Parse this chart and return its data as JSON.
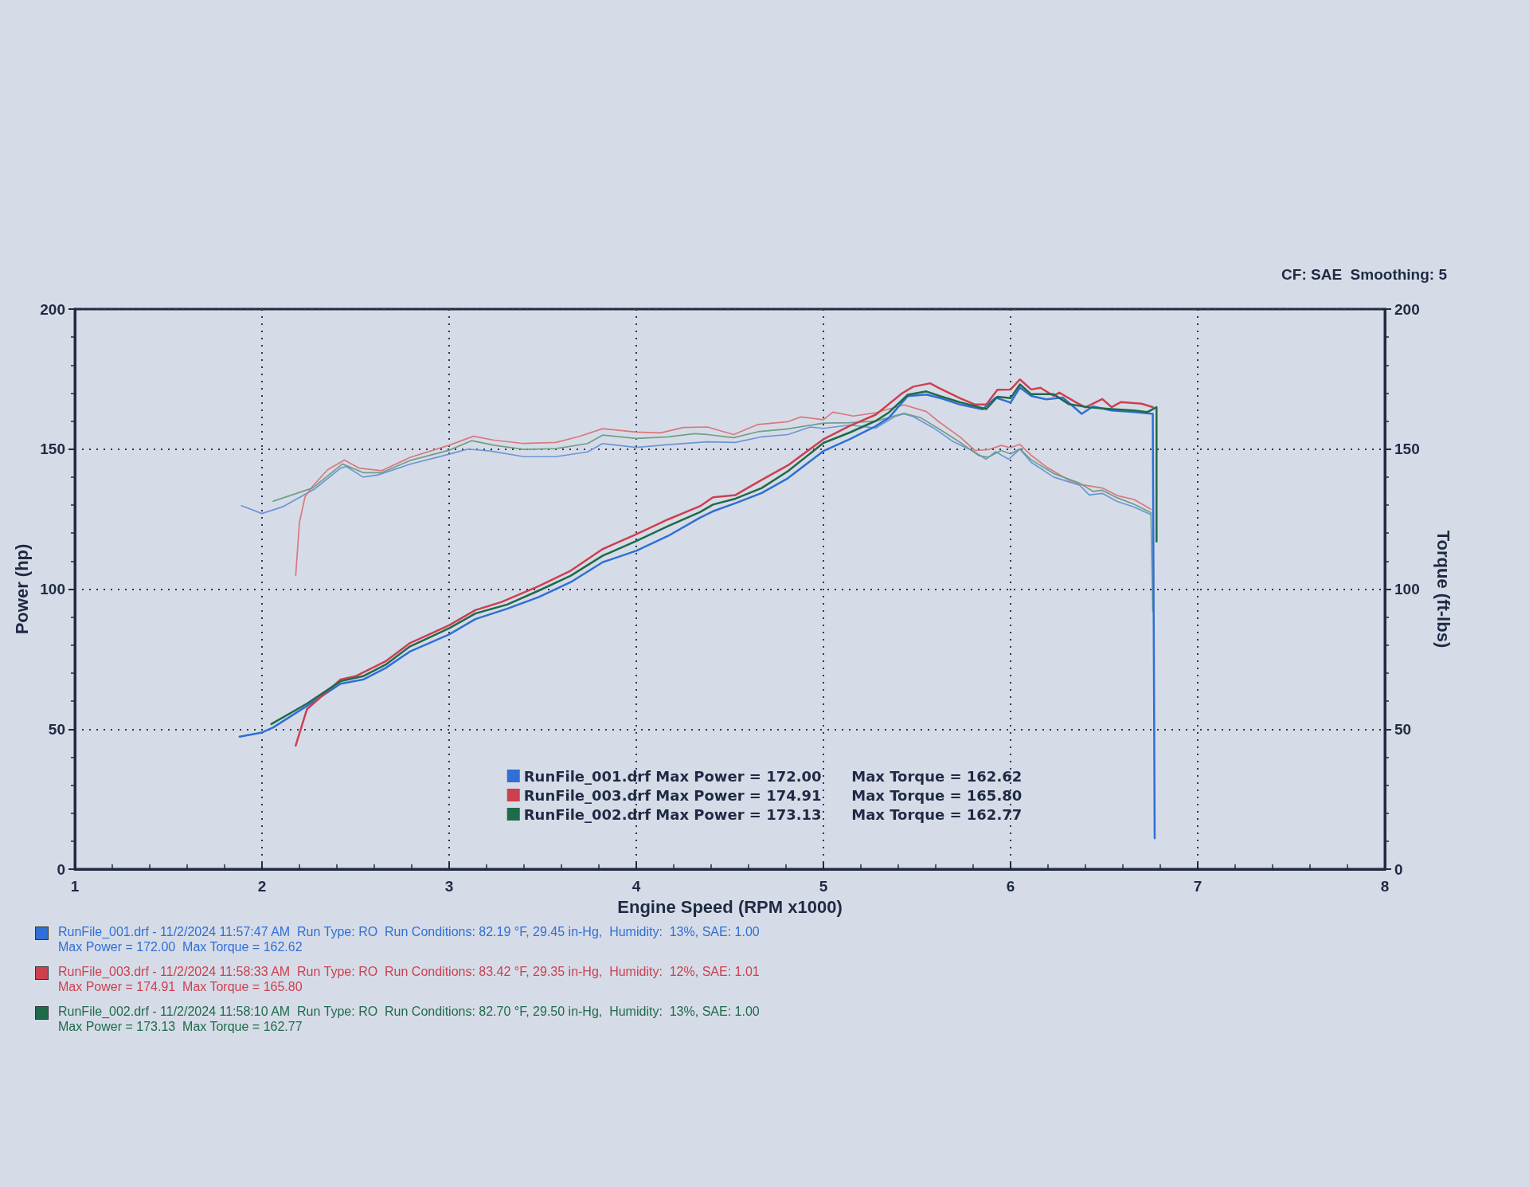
{
  "chart_data": {
    "type": "line",
    "subtitle": "CF: SAE  Smoothing: 5",
    "xlabel": "Engine Speed (RPM x1000)",
    "ylabel": "Power (hp)",
    "y2label": "Torque (ft-lbs)",
    "xlim": [
      1,
      8
    ],
    "xticks": [
      1,
      2,
      3,
      4,
      5,
      6,
      7,
      8
    ],
    "ylim": [
      0,
      200
    ],
    "yticks": [
      0,
      50,
      100,
      150,
      200
    ],
    "y2lim": [
      0,
      200
    ],
    "y2ticks": [
      0,
      50,
      100,
      150,
      200
    ],
    "grid": true,
    "legend": "bottom",
    "series": [
      {
        "name": "RunFile_001.drf Max Power = 172.00      Max Torque = 162.62",
        "color": "#2f6fd6",
        "x": [
          1.88,
          2.0,
          2.06,
          2.24,
          2.42,
          2.54,
          2.66,
          2.79,
          3.0,
          3.14,
          3.31,
          3.48,
          3.65,
          3.82,
          4.0,
          4.17,
          4.34,
          4.41,
          4.53,
          4.67,
          4.81,
          5.0,
          5.14,
          5.28,
          5.35,
          5.45,
          5.55,
          5.62,
          5.73,
          5.85,
          5.92,
          6.0,
          6.05,
          6.11,
          6.19,
          6.28,
          6.38,
          6.44,
          6.54,
          6.66,
          6.76,
          6.77
        ],
        "values": [
          47.3,
          48.8,
          50.6,
          58.3,
          66.2,
          67.7,
          71.8,
          77.7,
          83.8,
          89.3,
          93.0,
          97.2,
          102.5,
          109.6,
          113.7,
          119.0,
          125.5,
          127.8,
          130.7,
          134.3,
          139.6,
          149.3,
          153.5,
          158.2,
          161.2,
          168.9,
          169.5,
          168.3,
          165.9,
          164.2,
          168.4,
          166.6,
          172.0,
          169.0,
          167.8,
          168.4,
          162.6,
          165.2,
          163.8,
          163.2,
          162.6,
          11
        ]
      },
      {
        "name": "RunFile_003.drf Max Power = 174.91      Max Torque = 165.80",
        "color": "#cc4050",
        "x": [
          2.18,
          2.24,
          2.42,
          2.5,
          2.66,
          2.79,
          3.0,
          3.14,
          3.28,
          3.48,
          3.65,
          3.82,
          4.0,
          4.17,
          4.34,
          4.41,
          4.53,
          4.67,
          4.81,
          5.0,
          5.14,
          5.28,
          5.42,
          5.48,
          5.57,
          5.62,
          5.73,
          5.81,
          5.87,
          5.93,
          6.0,
          6.05,
          6.11,
          6.16,
          6.23,
          6.26,
          6.35,
          6.4,
          6.49,
          6.54,
          6.59,
          6.7,
          6.76
        ],
        "values": [
          44.1,
          57.1,
          67.7,
          68.9,
          74.2,
          80.7,
          87.1,
          92.5,
          95.4,
          101.1,
          106.6,
          114.3,
          119.6,
          124.9,
          129.6,
          132.8,
          133.6,
          139.0,
          144.2,
          153.5,
          158.3,
          162.3,
          169.9,
          172.3,
          173.5,
          171.7,
          168.2,
          165.9,
          165.9,
          171.2,
          171.3,
          174.9,
          171.3,
          171.9,
          169.0,
          170.2,
          166.7,
          164.9,
          167.9,
          165.0,
          166.8,
          166.2,
          165.0
        ]
      },
      {
        "name": "RunFile_002.drf Max Power = 173.13      Max Torque = 162.77",
        "color": "#1e6b4a",
        "x": [
          2.05,
          2.24,
          2.42,
          2.54,
          2.66,
          2.79,
          3.0,
          3.14,
          3.31,
          3.48,
          3.65,
          3.82,
          4.0,
          4.17,
          4.34,
          4.41,
          4.53,
          4.67,
          4.81,
          5.0,
          5.14,
          5.28,
          5.35,
          5.45,
          5.55,
          5.62,
          5.73,
          5.87,
          5.93,
          6.0,
          6.05,
          6.11,
          6.23,
          6.31,
          6.42,
          6.54,
          6.66,
          6.73,
          6.78,
          6.78
        ],
        "values": [
          51.8,
          59.1,
          67.1,
          68.9,
          73.0,
          79.5,
          86.0,
          91.3,
          94.5,
          99.5,
          104.8,
          111.9,
          117.2,
          122.5,
          127.5,
          130.2,
          132.3,
          136.1,
          142.1,
          152.2,
          155.9,
          160.1,
          163.1,
          169.4,
          170.6,
          169.0,
          166.7,
          164.3,
          168.7,
          168.2,
          173.1,
          169.6,
          169.6,
          166.1,
          164.9,
          164.3,
          163.8,
          163.2,
          165.0,
          117
        ]
      },
      {
        "color": "#6b95d6",
        "axis": "y2",
        "x": [
          1.89,
          2.0,
          2.11,
          2.28,
          2.42,
          2.45,
          2.54,
          2.62,
          2.79,
          3.0,
          3.1,
          3.22,
          3.4,
          3.57,
          3.74,
          3.82,
          4.0,
          4.17,
          4.38,
          4.53,
          4.67,
          4.81,
          4.93,
          5.0,
          5.14,
          5.28,
          5.38,
          5.43,
          5.48,
          5.59,
          5.69,
          5.8,
          5.87,
          5.92,
          5.99,
          6.05,
          6.11,
          6.23,
          6.37,
          6.42,
          6.49,
          6.57,
          6.66,
          6.75
        ],
        "values": [
          129.8,
          127.0,
          129.4,
          135.7,
          143.2,
          143.8,
          140.0,
          140.8,
          144.6,
          148.2,
          150.0,
          149.3,
          147.3,
          147.3,
          149.0,
          152.0,
          150.6,
          151.6,
          152.6,
          152.4,
          154.4,
          155.2,
          157.9,
          157.4,
          158.6,
          157.5,
          161.6,
          162.6,
          161.6,
          157.5,
          152.8,
          149.3,
          146.4,
          149.1,
          146.4,
          150.0,
          145.3,
          140.0,
          137.1,
          133.6,
          134.2,
          131.3,
          129.3,
          126.6
        ]
      },
      {
        "color": "#d9787e",
        "axis": "y2",
        "x": [
          2.18,
          2.2,
          2.23,
          2.27,
          2.35,
          2.44,
          2.52,
          2.64,
          2.79,
          3.0,
          3.13,
          3.24,
          3.4,
          3.57,
          3.69,
          3.82,
          4.0,
          4.13,
          4.25,
          4.38,
          4.52,
          4.65,
          4.81,
          4.88,
          5.0,
          5.05,
          5.16,
          5.28,
          5.43,
          5.55,
          5.62,
          5.73,
          5.81,
          5.88,
          5.95,
          6.0,
          6.05,
          6.11,
          6.19,
          6.31,
          6.38,
          6.49,
          6.57,
          6.66,
          6.75
        ],
        "values": [
          104.8,
          123.7,
          133.0,
          136.7,
          142.6,
          146.1,
          143.2,
          142.3,
          147.0,
          151.4,
          154.6,
          153.2,
          152.0,
          152.4,
          154.4,
          157.3,
          156.1,
          155.8,
          157.7,
          157.9,
          155.2,
          158.8,
          159.8,
          161.5,
          160.5,
          163.2,
          161.8,
          163.0,
          165.8,
          163.4,
          159.6,
          154.3,
          149.5,
          149.8,
          151.3,
          150.5,
          151.7,
          147.8,
          143.7,
          139.0,
          137.3,
          136.1,
          133.4,
          132.0,
          128.5
        ]
      },
      {
        "color": "#6f9f86",
        "axis": "y2",
        "x": [
          2.06,
          2.27,
          2.43,
          2.54,
          2.64,
          2.79,
          3.0,
          3.12,
          3.24,
          3.4,
          3.57,
          3.74,
          3.82,
          4.0,
          4.17,
          4.31,
          4.38,
          4.52,
          4.65,
          4.81,
          5.0,
          5.14,
          5.28,
          5.43,
          5.52,
          5.62,
          5.73,
          5.83,
          5.88,
          5.95,
          6.0,
          6.05,
          6.11,
          6.23,
          6.37,
          6.44,
          6.49,
          6.57,
          6.66,
          6.75,
          6.76
        ],
        "values": [
          131.4,
          136.1,
          144.7,
          141.6,
          141.6,
          145.9,
          149.6,
          153.0,
          151.4,
          149.9,
          150.2,
          152.0,
          155.0,
          153.8,
          154.4,
          155.5,
          155.2,
          154.1,
          156.2,
          157.2,
          159.3,
          159.4,
          160.0,
          162.8,
          161.2,
          157.1,
          152.4,
          147.7,
          147.1,
          149.5,
          148.3,
          150.1,
          146.2,
          141.3,
          137.8,
          134.9,
          135.3,
          132.6,
          130.3,
          127.3,
          92
        ]
      }
    ],
    "annotations": [
      "RunFile_001.drf - 11/2/2024 11:57:47 AM  Run Type: RO  Run Conditions: 82.19 °F, 29.45 in-Hg,  Humidity:  13%, SAE: 1.00\nMax Power = 172.00  Max Torque = 162.62",
      "RunFile_003.drf - 11/2/2024 11:58:33 AM  Run Type: RO  Run Conditions: 83.42 °F, 29.35 in-Hg,  Humidity:  12%, SAE: 1.01\nMax Power = 174.91  Max Torque = 165.80",
      "RunFile_002.drf - 11/2/2024 11:58:10 AM  Run Type: RO  Run Conditions: 82.70 °F, 29.50 in-Hg,  Humidity:  13%, SAE: 1.00\nMax Power = 173.13  Max Torque = 162.77"
    ]
  }
}
